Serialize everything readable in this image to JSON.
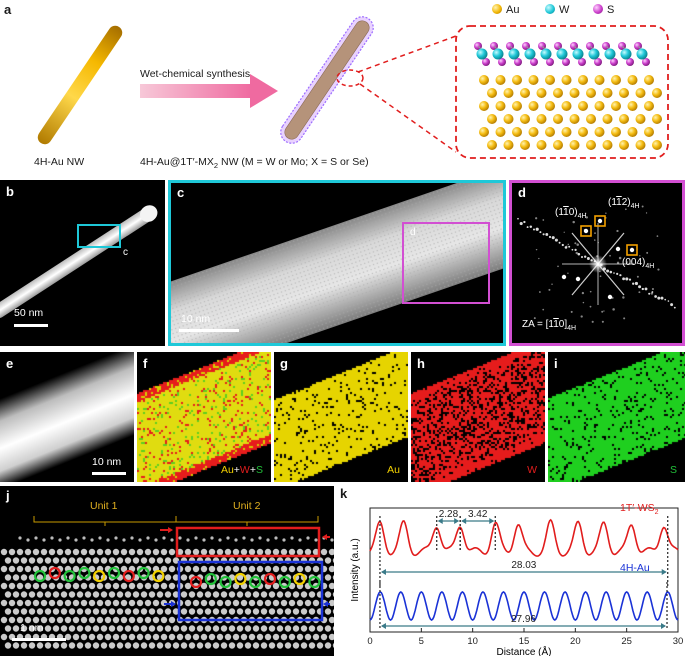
{
  "panels": {
    "a": {
      "label": "a",
      "legend": [
        {
          "symbol": "Au",
          "color": "#f2b705"
        },
        {
          "symbol": "W",
          "color": "#1ec8d8"
        },
        {
          "symbol": "S",
          "color": "#cc3fcc"
        }
      ],
      "arrow_text": "Wet-chemical synthesis",
      "left_caption": "4H-Au NW",
      "right_caption_main": "4H-Au@1T′-MX",
      "right_caption_sub": "2",
      "right_caption_tail": " NW (M = W or Mo; X = S or Se)"
    },
    "b": {
      "label": "b",
      "scale_text": "50 nm",
      "box_label": "c"
    },
    "c": {
      "label": "c",
      "scale_text": "10 nm",
      "box_label": "d"
    },
    "d": {
      "label": "d",
      "spot1_main": "(1",
      "spot1_bar": "1",
      "spot1_tail": "0)",
      "spot1_sub": "4H",
      "spot2_main": "(1",
      "spot2_bar": "1",
      "spot2_tail": "2)",
      "spot2_sub": "4H",
      "spot3_main": "(004)",
      "spot3_sub": "4H",
      "za_main": "ZA = [1",
      "za_bar": "1",
      "za_tail": "0]",
      "za_sub": "4H"
    },
    "e": {
      "label": "e",
      "scale_text": "10 nm"
    },
    "f": {
      "label": "f",
      "map_au": "Au",
      "map_plus1": "+",
      "map_w": "W",
      "map_plus2": "+",
      "map_s": "S"
    },
    "g": {
      "label": "g",
      "map_text": "Au"
    },
    "h": {
      "label": "h",
      "map_text": "W"
    },
    "i": {
      "label": "i",
      "map_text": "S"
    },
    "j": {
      "label": "j",
      "unit1": "Unit 1",
      "unit2": "Unit 2",
      "scale_text": "1 nm"
    },
    "k": {
      "label": "k"
    }
  },
  "colors": {
    "cyan_frame": "#1ec8d8",
    "magenta_frame": "#d24fd2",
    "red": "#e11d1d",
    "blue": "#1a32d6",
    "gold": "#f2b705",
    "green": "#22c03a"
  },
  "chart_data": {
    "type": "line",
    "xlabel": "Distance (Å)",
    "ylabel": "Intensity (a.u.)",
    "xlim": [
      0,
      30
    ],
    "x_ticks": [
      "0",
      "5",
      "10",
      "15",
      "20",
      "25",
      "30"
    ],
    "series": [
      {
        "name": "1T′-WS2",
        "label_main": "1T′-WS",
        "label_sub": "2",
        "color": "#e11d1d",
        "peaks_x": [
          1.0,
          3.3,
          6.5,
          8.8,
          12.2,
          14.4,
          17.6,
          20.3,
          22.8,
          25.5,
          28.6
        ]
      },
      {
        "name": "4H-Au",
        "color": "#1a32d6",
        "period": 2.0,
        "first_peak": 1.0,
        "last_peak": 28.96
      }
    ],
    "annotations": [
      {
        "text": "2.28",
        "x1": 6.5,
        "x2": 8.78
      },
      {
        "text": "3.42",
        "x1": 8.78,
        "x2": 12.2
      },
      {
        "text": "28.03",
        "x1": 0.97,
        "x2": 29.0
      },
      {
        "text": "27.96",
        "x1": 0.97,
        "x2": 28.93
      }
    ]
  }
}
